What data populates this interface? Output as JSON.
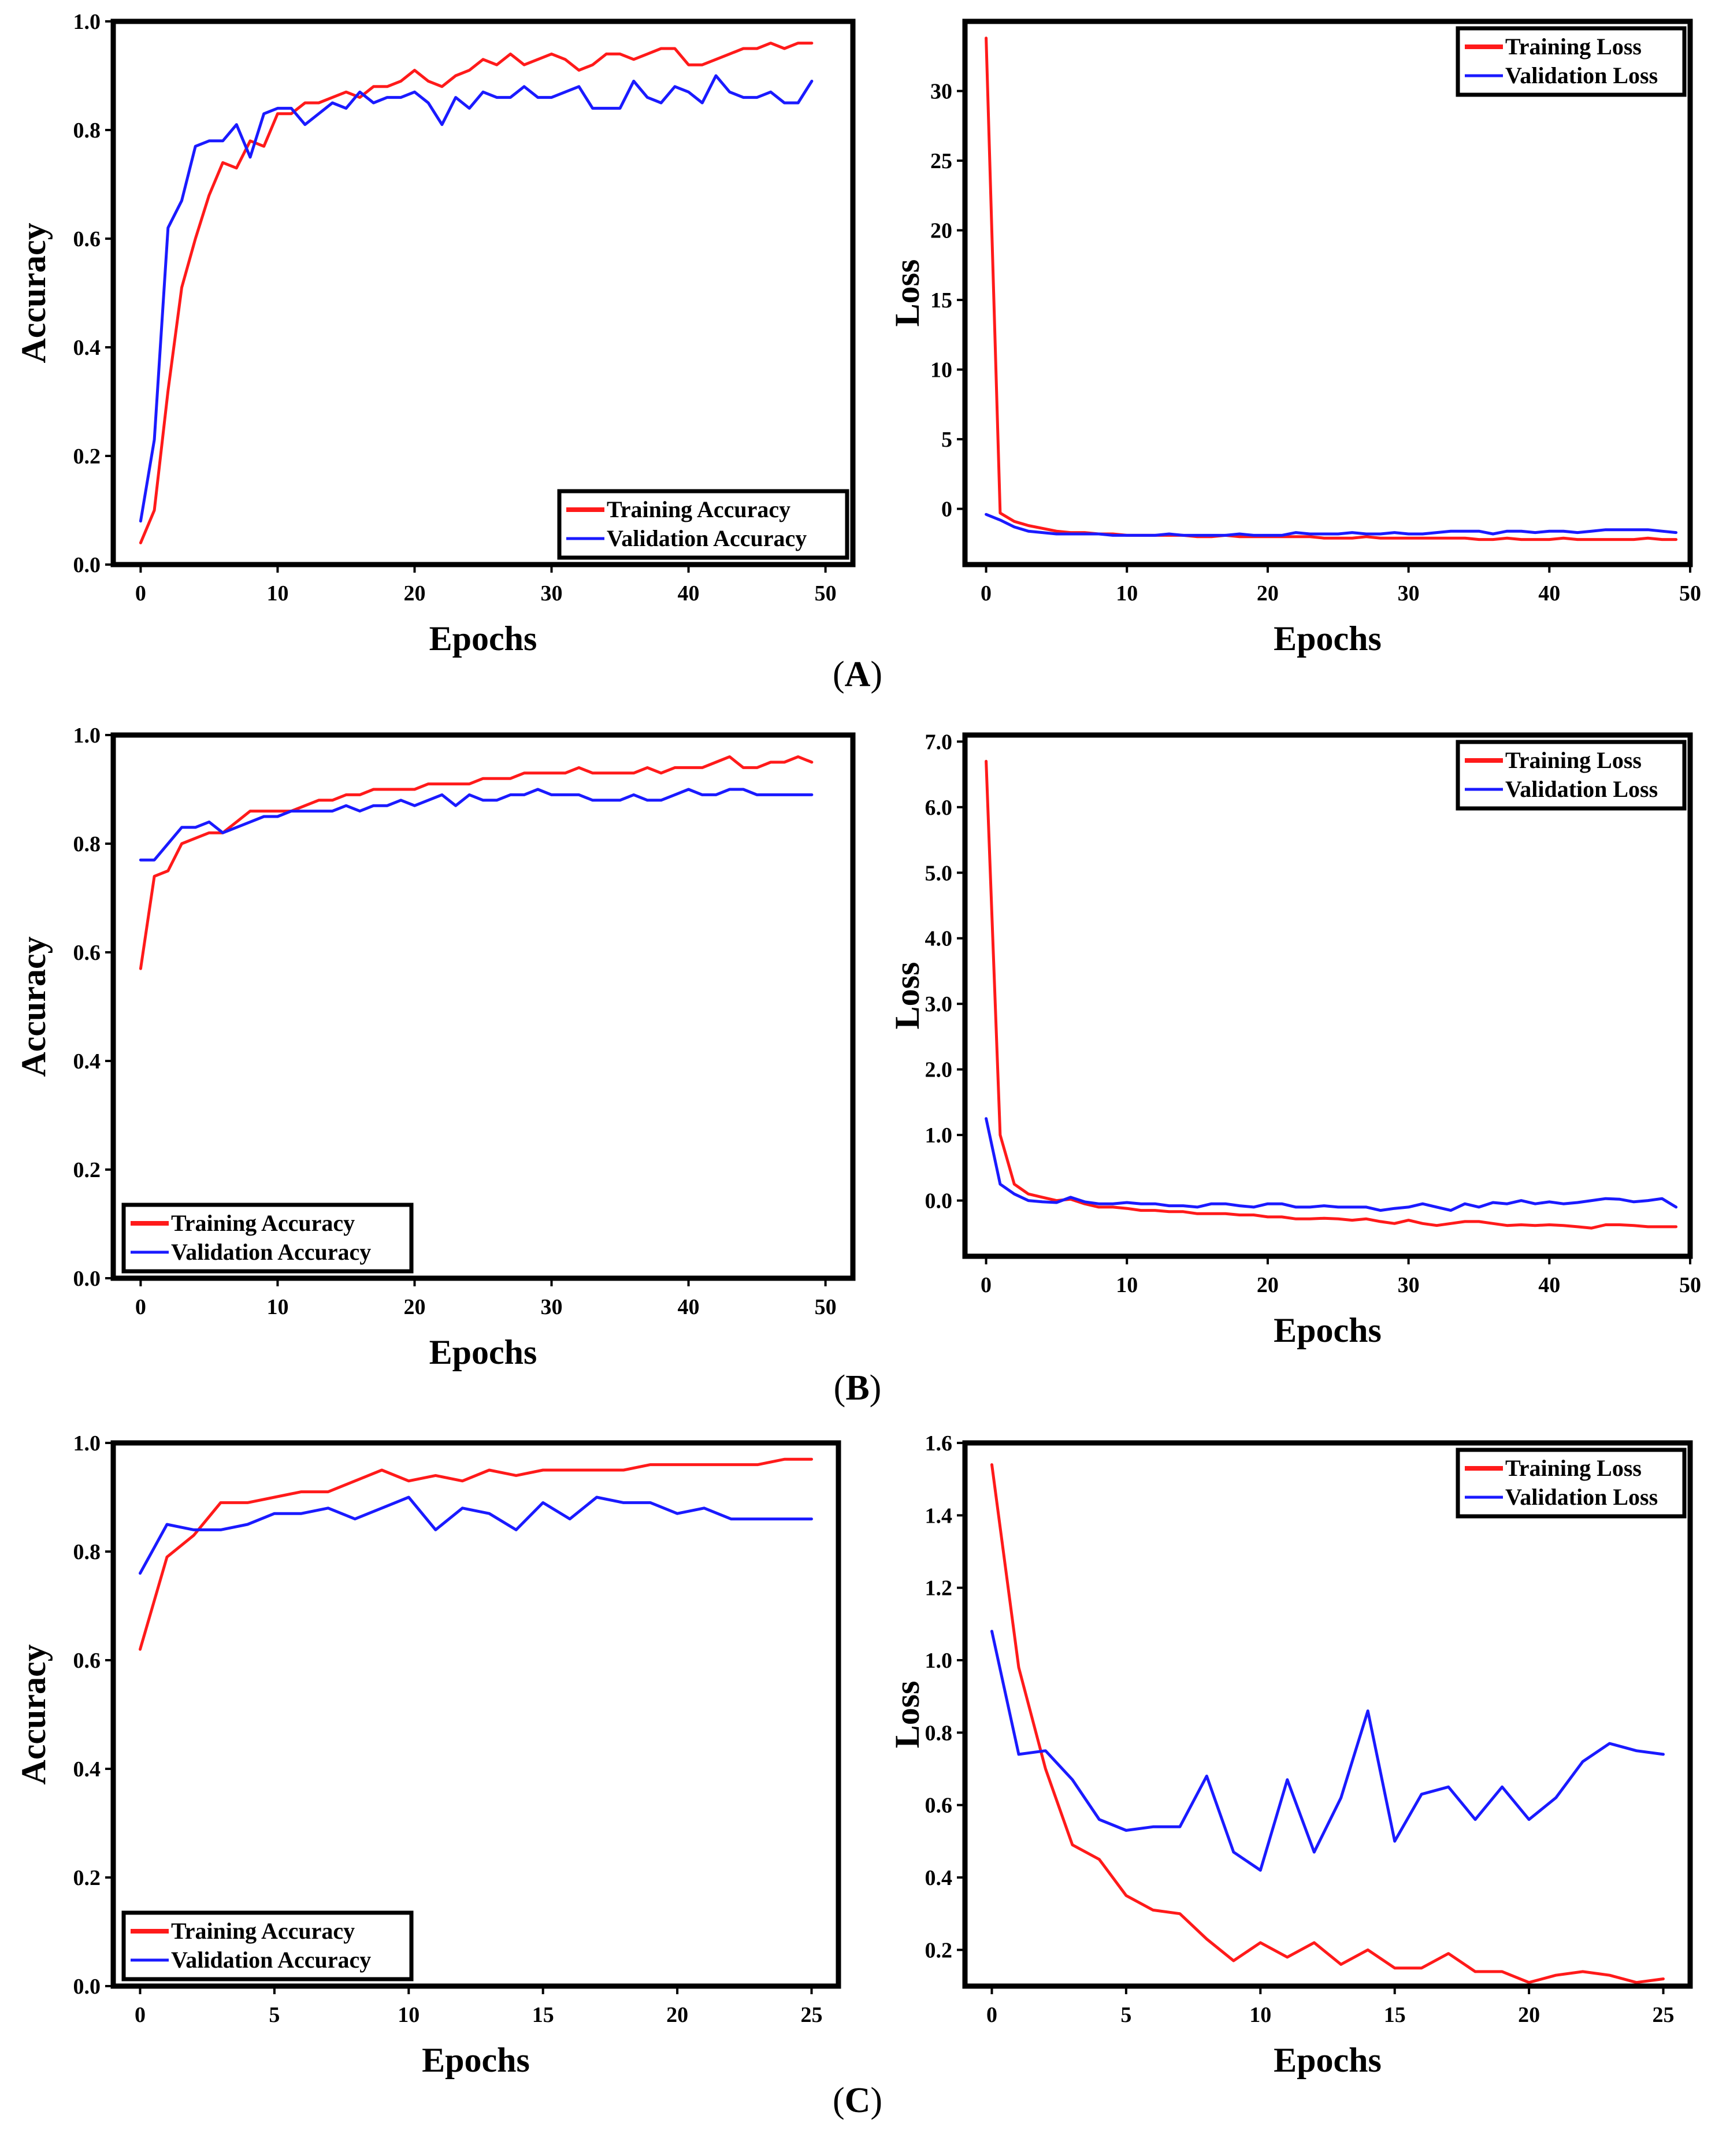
{
  "colors": {
    "training": "#ff1a1a",
    "validation": "#1a1aff"
  },
  "panel_labels": [
    {
      "prefix": "(",
      "letter": "A",
      "suffix": ")"
    },
    {
      "prefix": "(",
      "letter": "B",
      "suffix": ")"
    },
    {
      "prefix": "(",
      "letter": "C",
      "suffix": ")"
    }
  ],
  "chart_data": [
    {
      "id": "A-accuracy",
      "type": "line",
      "xlabel": "Epochs",
      "ylabel": "Accuracy",
      "xlim": [
        -2,
        52
      ],
      "ylim": [
        0,
        1.0
      ],
      "xticks": [
        0,
        10,
        20,
        30,
        40,
        50
      ],
      "yticks": [
        0.0,
        0.2,
        0.4,
        0.6,
        0.8,
        1.0
      ],
      "ytick_labels": [
        "0.0",
        "0.2",
        "0.4",
        "0.6",
        "0.8",
        "1.0"
      ],
      "legend_position": "bottom-right",
      "series": [
        {
          "name": "Training Accuracy",
          "color": "training",
          "x_start": 0,
          "values": [
            0.04,
            0.1,
            0.32,
            0.51,
            0.6,
            0.68,
            0.74,
            0.73,
            0.78,
            0.77,
            0.83,
            0.83,
            0.85,
            0.85,
            0.86,
            0.87,
            0.86,
            0.88,
            0.88,
            0.89,
            0.91,
            0.89,
            0.88,
            0.9,
            0.91,
            0.93,
            0.92,
            0.94,
            0.92,
            0.93,
            0.94,
            0.93,
            0.91,
            0.92,
            0.94,
            0.94,
            0.93,
            0.94,
            0.95,
            0.95,
            0.92,
            0.92,
            0.93,
            0.94,
            0.95,
            0.95,
            0.96,
            0.95,
            0.96,
            0.96
          ]
        },
        {
          "name": "Validation Accuracy",
          "color": "validation",
          "x_start": 0,
          "values": [
            0.08,
            0.23,
            0.62,
            0.67,
            0.77,
            0.78,
            0.78,
            0.81,
            0.75,
            0.83,
            0.84,
            0.84,
            0.81,
            0.83,
            0.85,
            0.84,
            0.87,
            0.85,
            0.86,
            0.86,
            0.87,
            0.85,
            0.81,
            0.86,
            0.84,
            0.87,
            0.86,
            0.86,
            0.88,
            0.86,
            0.86,
            0.87,
            0.88,
            0.84,
            0.84,
            0.84,
            0.89,
            0.86,
            0.85,
            0.88,
            0.87,
            0.85,
            0.9,
            0.87,
            0.86,
            0.86,
            0.87,
            0.85,
            0.85,
            0.89
          ]
        }
      ]
    },
    {
      "id": "A-loss",
      "type": "line",
      "xlabel": "Epochs",
      "ylabel": "Loss",
      "xlim": [
        -1.5,
        50
      ],
      "ylim": [
        -4,
        35
      ],
      "xticks": [
        0,
        10,
        20,
        30,
        40,
        50
      ],
      "yticks": [
        0,
        5,
        10,
        15,
        20,
        25,
        30
      ],
      "ytick_labels": [
        "0",
        "5",
        "10",
        "15",
        "20",
        "25",
        "30"
      ],
      "legend_position": "top-right",
      "series": [
        {
          "name": "Training Loss",
          "color": "training",
          "x_start": 0,
          "values": [
            33.8,
            -0.3,
            -0.9,
            -1.2,
            -1.4,
            -1.6,
            -1.7,
            -1.7,
            -1.8,
            -1.8,
            -1.9,
            -1.9,
            -1.9,
            -1.9,
            -1.9,
            -2.0,
            -2.0,
            -1.9,
            -2.0,
            -2.0,
            -2.0,
            -2.0,
            -2.0,
            -2.0,
            -2.1,
            -2.1,
            -2.1,
            -2.0,
            -2.1,
            -2.1,
            -2.1,
            -2.1,
            -2.1,
            -2.1,
            -2.1,
            -2.2,
            -2.2,
            -2.1,
            -2.2,
            -2.2,
            -2.2,
            -2.1,
            -2.2,
            -2.2,
            -2.2,
            -2.2,
            -2.2,
            -2.1,
            -2.2,
            -2.2
          ]
        },
        {
          "name": "Validation Loss",
          "color": "validation",
          "x_start": 0,
          "values": [
            -0.4,
            -0.8,
            -1.3,
            -1.6,
            -1.7,
            -1.8,
            -1.8,
            -1.8,
            -1.8,
            -1.9,
            -1.9,
            -1.9,
            -1.9,
            -1.8,
            -1.9,
            -1.9,
            -1.9,
            -1.9,
            -1.8,
            -1.9,
            -1.9,
            -1.9,
            -1.7,
            -1.8,
            -1.8,
            -1.8,
            -1.7,
            -1.8,
            -1.8,
            -1.7,
            -1.8,
            -1.8,
            -1.7,
            -1.6,
            -1.6,
            -1.6,
            -1.8,
            -1.6,
            -1.6,
            -1.7,
            -1.6,
            -1.6,
            -1.7,
            -1.6,
            -1.5,
            -1.5,
            -1.5,
            -1.5,
            -1.6,
            -1.7
          ]
        }
      ]
    },
    {
      "id": "B-accuracy",
      "type": "line",
      "xlabel": "Epochs",
      "ylabel": "Accuracy",
      "xlim": [
        -2,
        52
      ],
      "ylim": [
        0,
        1.0
      ],
      "xticks": [
        0,
        10,
        20,
        30,
        40,
        50
      ],
      "yticks": [
        0.0,
        0.2,
        0.4,
        0.6,
        0.8,
        1.0
      ],
      "ytick_labels": [
        "0.0",
        "0.2",
        "0.4",
        "0.6",
        "0.8",
        "1.0"
      ],
      "legend_position": "bottom-left",
      "series": [
        {
          "name": "Training Accuracy",
          "color": "training",
          "x_start": 0,
          "values": [
            0.57,
            0.74,
            0.75,
            0.8,
            0.81,
            0.82,
            0.82,
            0.84,
            0.86,
            0.86,
            0.86,
            0.86,
            0.87,
            0.88,
            0.88,
            0.89,
            0.89,
            0.9,
            0.9,
            0.9,
            0.9,
            0.91,
            0.91,
            0.91,
            0.91,
            0.92,
            0.92,
            0.92,
            0.93,
            0.93,
            0.93,
            0.93,
            0.94,
            0.93,
            0.93,
            0.93,
            0.93,
            0.94,
            0.93,
            0.94,
            0.94,
            0.94,
            0.95,
            0.96,
            0.94,
            0.94,
            0.95,
            0.95,
            0.96,
            0.95
          ]
        },
        {
          "name": "Validation Accuracy",
          "color": "validation",
          "x_start": 0,
          "values": [
            0.77,
            0.77,
            0.8,
            0.83,
            0.83,
            0.84,
            0.82,
            0.83,
            0.84,
            0.85,
            0.85,
            0.86,
            0.86,
            0.86,
            0.86,
            0.87,
            0.86,
            0.87,
            0.87,
            0.88,
            0.87,
            0.88,
            0.89,
            0.87,
            0.89,
            0.88,
            0.88,
            0.89,
            0.89,
            0.9,
            0.89,
            0.89,
            0.89,
            0.88,
            0.88,
            0.88,
            0.89,
            0.88,
            0.88,
            0.89,
            0.9,
            0.89,
            0.89,
            0.9,
            0.9,
            0.89,
            0.89,
            0.89,
            0.89,
            0.89
          ]
        }
      ]
    },
    {
      "id": "B-loss",
      "type": "line",
      "xlabel": "Epochs",
      "ylabel": "Loss",
      "xlim": [
        -1.5,
        50
      ],
      "ylim": [
        -0.85,
        7.1
      ],
      "xticks": [
        0,
        10,
        20,
        30,
        40,
        50
      ],
      "yticks": [
        0.0,
        1.0,
        2.0,
        3.0,
        4.0,
        5.0,
        6.0,
        7.0
      ],
      "ytick_labels": [
        "0.0",
        "1.0",
        "2.0",
        "3.0",
        "4.0",
        "5.0",
        "6.0",
        "7.0"
      ],
      "legend_position": "top-right",
      "series": [
        {
          "name": "Training Loss",
          "color": "training",
          "x_start": 0,
          "values": [
            6.7,
            1.0,
            0.25,
            0.1,
            0.05,
            0.0,
            0.02,
            -0.05,
            -0.1,
            -0.1,
            -0.12,
            -0.15,
            -0.15,
            -0.17,
            -0.17,
            -0.2,
            -0.2,
            -0.2,
            -0.22,
            -0.22,
            -0.25,
            -0.25,
            -0.28,
            -0.28,
            -0.27,
            -0.28,
            -0.3,
            -0.28,
            -0.32,
            -0.35,
            -0.3,
            -0.35,
            -0.38,
            -0.35,
            -0.32,
            -0.32,
            -0.35,
            -0.38,
            -0.37,
            -0.38,
            -0.37,
            -0.38,
            -0.4,
            -0.42,
            -0.37,
            -0.37,
            -0.38,
            -0.4,
            -0.4,
            -0.4
          ]
        },
        {
          "name": "Validation Loss",
          "color": "validation",
          "x_start": 0,
          "values": [
            1.25,
            0.25,
            0.1,
            0.0,
            -0.02,
            -0.03,
            0.05,
            -0.02,
            -0.05,
            -0.05,
            -0.03,
            -0.05,
            -0.05,
            -0.08,
            -0.08,
            -0.1,
            -0.05,
            -0.05,
            -0.08,
            -0.1,
            -0.05,
            -0.05,
            -0.1,
            -0.1,
            -0.08,
            -0.1,
            -0.1,
            -0.1,
            -0.15,
            -0.12,
            -0.1,
            -0.05,
            -0.1,
            -0.15,
            -0.05,
            -0.1,
            -0.03,
            -0.05,
            0.0,
            -0.05,
            -0.02,
            -0.05,
            -0.03,
            0.0,
            0.03,
            0.02,
            -0.02,
            0.0,
            0.03,
            -0.1
          ]
        }
      ]
    },
    {
      "id": "C-accuracy",
      "type": "line",
      "xlabel": "Epochs",
      "ylabel": "Accuracy",
      "xlim": [
        -1,
        26
      ],
      "ylim": [
        0,
        1.0
      ],
      "xticks": [
        0,
        5,
        10,
        15,
        20,
        25
      ],
      "yticks": [
        0.0,
        0.2,
        0.4,
        0.6,
        0.8,
        1.0
      ],
      "ytick_labels": [
        "0.0",
        "0.2",
        "0.4",
        "0.6",
        "0.8",
        "1.0"
      ],
      "legend_position": "bottom-left",
      "series": [
        {
          "name": "Training Accuracy",
          "color": "training",
          "x_start": 0,
          "values": [
            0.62,
            0.79,
            0.83,
            0.89,
            0.89,
            0.9,
            0.91,
            0.91,
            0.93,
            0.95,
            0.93,
            0.94,
            0.93,
            0.95,
            0.94,
            0.95,
            0.95,
            0.95,
            0.95,
            0.96,
            0.96,
            0.96,
            0.96,
            0.96,
            0.97,
            0.97
          ]
        },
        {
          "name": "Validation Accuracy",
          "color": "validation",
          "x_start": 0,
          "values": [
            0.76,
            0.85,
            0.84,
            0.84,
            0.85,
            0.87,
            0.87,
            0.88,
            0.86,
            0.88,
            0.9,
            0.84,
            0.88,
            0.87,
            0.84,
            0.89,
            0.86,
            0.9,
            0.89,
            0.89,
            0.87,
            0.88,
            0.86,
            0.86,
            0.86,
            0.86
          ]
        }
      ]
    },
    {
      "id": "C-loss",
      "type": "line",
      "xlabel": "Epochs",
      "ylabel": "Loss",
      "xlim": [
        -1,
        26
      ],
      "ylim": [
        0.1,
        1.6
      ],
      "xticks": [
        0,
        5,
        10,
        15,
        20,
        25
      ],
      "yticks": [
        0.2,
        0.4,
        0.6,
        0.8,
        1.0,
        1.2,
        1.4,
        1.6
      ],
      "ytick_labels": [
        "0.2",
        "0.4",
        "0.6",
        "0.8",
        "1.0",
        "1.2",
        "1.4",
        "1.6"
      ],
      "legend_position": "top-right",
      "series": [
        {
          "name": "Training Loss",
          "color": "training",
          "x_start": 0,
          "values": [
            1.54,
            0.98,
            0.7,
            0.49,
            0.45,
            0.35,
            0.31,
            0.3,
            0.23,
            0.17,
            0.22,
            0.18,
            0.22,
            0.16,
            0.2,
            0.15,
            0.15,
            0.19,
            0.14,
            0.14,
            0.11,
            0.13,
            0.14,
            0.13,
            0.11,
            0.12
          ]
        },
        {
          "name": "Validation Loss",
          "color": "validation",
          "x_start": 0,
          "values": [
            1.08,
            0.74,
            0.75,
            0.67,
            0.56,
            0.53,
            0.54,
            0.54,
            0.68,
            0.47,
            0.42,
            0.67,
            0.47,
            0.62,
            0.86,
            0.5,
            0.63,
            0.65,
            0.56,
            0.65,
            0.56,
            0.62,
            0.72,
            0.77,
            0.75,
            0.74
          ]
        }
      ]
    }
  ]
}
